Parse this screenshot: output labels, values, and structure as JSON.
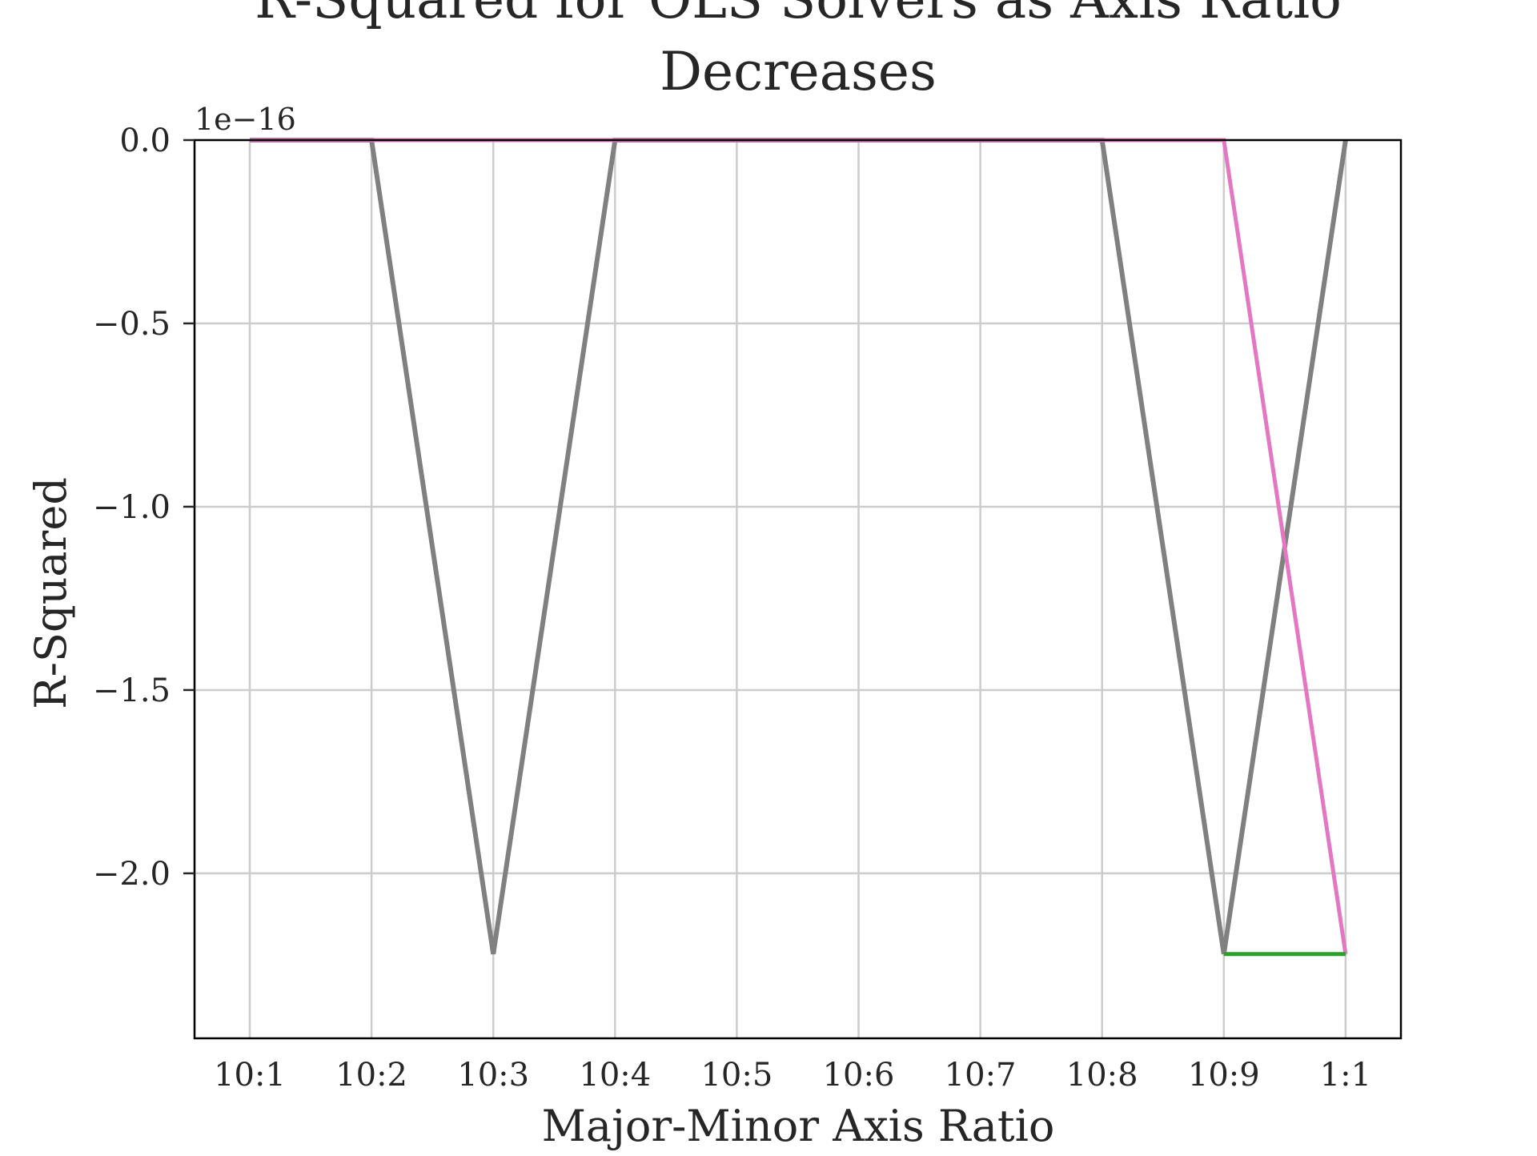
{
  "chart_data": {
    "type": "line",
    "title_lines": [
      "R-Squared for OLS Solvers as Axis Ratio",
      "Decreases"
    ],
    "xlabel": "Major-Minor Axis Ratio",
    "ylabel": "R-Squared",
    "offset_label": "1e−16",
    "categories": [
      "10:1",
      "10:2",
      "10:3",
      "10:4",
      "10:5",
      "10:6",
      "10:7",
      "10:8",
      "10:9",
      "1:1"
    ],
    "y_ticks": [
      0.0,
      -0.5,
      -1.0,
      -1.5,
      -2.0
    ],
    "y_tick_labels": [
      "0.0",
      "−0.5",
      "−1.0",
      "−1.5",
      "−2.0"
    ],
    "ylim": [
      -2.45,
      0.0
    ],
    "y_unit_exponent": -16,
    "grid": true,
    "legend": "none",
    "series": [
      {
        "color": "#808080",
        "values": [
          0.0,
          0.0,
          -2.22,
          0.0,
          0.0,
          0.0,
          0.0,
          0.0,
          -2.22,
          0.0
        ]
      },
      {
        "color": "#e377c2",
        "values": [
          0.0,
          0.0,
          0.0,
          0.0,
          0.0,
          0.0,
          0.0,
          0.0,
          0.0,
          -2.22
        ]
      },
      {
        "color": "#2ca02c",
        "values": [
          null,
          null,
          null,
          null,
          null,
          null,
          null,
          null,
          -2.22,
          -2.22
        ]
      }
    ]
  }
}
